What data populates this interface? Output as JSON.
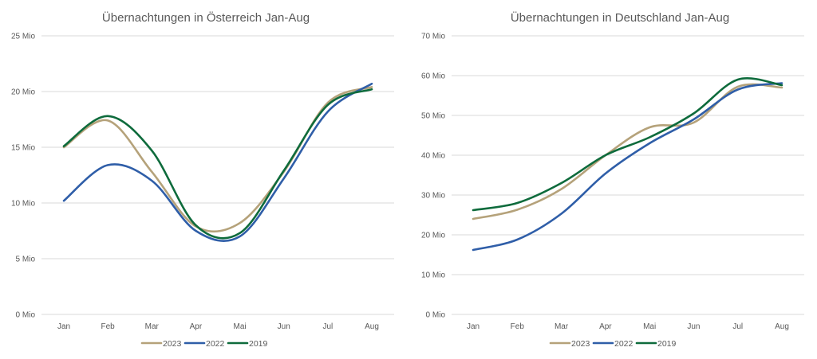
{
  "colors": {
    "2023": "#b5a27a",
    "2022": "#2f5ea8",
    "2019": "#0e6b3c"
  },
  "chart_data": [
    {
      "type": "line",
      "title": "Übernachtungen in Österreich Jan-Aug",
      "categories": [
        "Jan",
        "Feb",
        "Mar",
        "Apr",
        "Mai",
        "Jun",
        "Jul",
        "Aug"
      ],
      "yticks": [
        "0 Mio",
        "5 Mio",
        "10 Mio",
        "15 Mio",
        "20 Mio",
        "25 Mio"
      ],
      "ylim": [
        0,
        25
      ],
      "grid": true,
      "legend": "bottom",
      "series": [
        {
          "name": "2023",
          "values": [
            15.0,
            17.4,
            12.8,
            7.9,
            8.2,
            12.8,
            19.0,
            20.4
          ]
        },
        {
          "name": "2022",
          "values": [
            10.2,
            13.4,
            12.0,
            7.5,
            7.0,
            12.2,
            18.2,
            20.7
          ]
        },
        {
          "name": "2019",
          "values": [
            15.1,
            17.8,
            14.7,
            8.0,
            7.3,
            12.9,
            18.8,
            20.2
          ]
        }
      ]
    },
    {
      "type": "line",
      "title": "Übernachtungen in Deutschland Jan-Aug",
      "categories": [
        "Jan",
        "Feb",
        "Mar",
        "Apr",
        "Mai",
        "Jun",
        "Jul",
        "Aug"
      ],
      "yticks": [
        "0 Mio",
        "10 Mio",
        "20 Mio",
        "30 Mio",
        "40 Mio",
        "50 Mio",
        "60 Mio",
        "70 Mio"
      ],
      "ylim": [
        0,
        70
      ],
      "grid": true,
      "legend": "bottom",
      "series": [
        {
          "name": "2023",
          "values": [
            24.0,
            26.3,
            31.5,
            40.0,
            47.0,
            48.2,
            57.2,
            57.0
          ]
        },
        {
          "name": "2022",
          "values": [
            16.2,
            18.8,
            25.3,
            35.4,
            43.0,
            49.0,
            56.5,
            58.1
          ]
        },
        {
          "name": "2019",
          "values": [
            26.2,
            28.0,
            33.0,
            40.0,
            44.5,
            50.5,
            59.0,
            57.6
          ]
        }
      ]
    }
  ]
}
